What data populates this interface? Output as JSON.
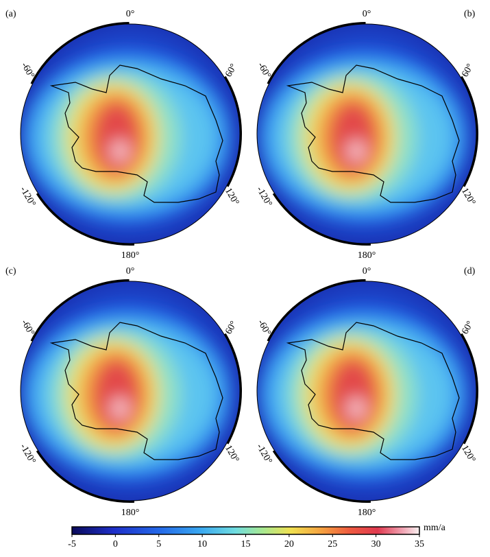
{
  "panels": [
    {
      "label": "(a)"
    },
    {
      "label": "(b)"
    },
    {
      "label": "(c)"
    },
    {
      "label": "(d)"
    }
  ],
  "longitude_labels": [
    "0°",
    "60°",
    "120°",
    "180°",
    "-120°",
    "-60°"
  ],
  "colorbar": {
    "unit": "mm/a",
    "range": [
      -5,
      35
    ],
    "ticks": [
      -5,
      0,
      5,
      10,
      15,
      20,
      25,
      30,
      35
    ]
  }
}
